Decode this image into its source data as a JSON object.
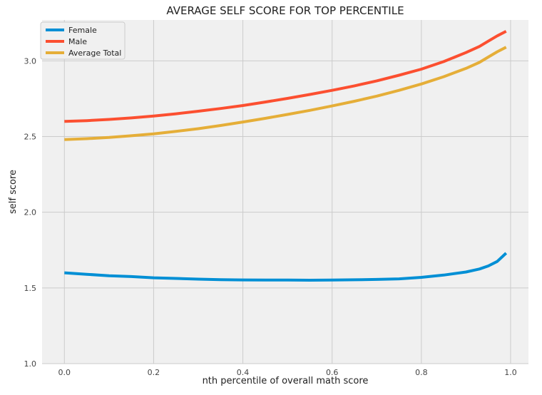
{
  "chart_data": {
    "type": "line",
    "title": "AVERAGE SELF SCORE FOR TOP PERCENTILE",
    "xlabel": "nth percentile of overall math score",
    "ylabel": "self score",
    "xlim": [
      -0.05,
      1.04
    ],
    "ylim": [
      1.0,
      3.27
    ],
    "xticks": [
      0.0,
      0.2,
      0.4,
      0.6,
      0.8,
      1.0
    ],
    "xtick_labels": [
      "0.0",
      "0.2",
      "0.4",
      "0.6",
      "0.8",
      "1.0"
    ],
    "yticks": [
      1.0,
      1.5,
      2.0,
      2.5,
      3.0
    ],
    "ytick_labels": [
      "1.0",
      "1.5",
      "2.0",
      "2.5",
      "3.0"
    ],
    "grid": true,
    "legend_position": "top-left",
    "background": "#f0f0f0",
    "x": [
      0.0,
      0.05,
      0.1,
      0.15,
      0.2,
      0.25,
      0.3,
      0.35,
      0.4,
      0.45,
      0.5,
      0.55,
      0.6,
      0.65,
      0.7,
      0.75,
      0.8,
      0.85,
      0.9,
      0.93,
      0.95,
      0.97,
      0.99
    ],
    "series": [
      {
        "name": "Female",
        "color": "#008fd5",
        "values": [
          1.6,
          1.59,
          1.58,
          1.575,
          1.567,
          1.563,
          1.558,
          1.555,
          1.553,
          1.552,
          1.552,
          1.551,
          1.552,
          1.554,
          1.556,
          1.56,
          1.57,
          1.585,
          1.605,
          1.625,
          1.645,
          1.675,
          1.73
        ]
      },
      {
        "name": "Male",
        "color": "#fc4f30",
        "values": [
          2.6,
          2.605,
          2.613,
          2.623,
          2.635,
          2.65,
          2.667,
          2.685,
          2.705,
          2.728,
          2.752,
          2.778,
          2.805,
          2.835,
          2.868,
          2.905,
          2.945,
          2.995,
          3.055,
          3.095,
          3.13,
          3.165,
          3.195
        ]
      },
      {
        "name": "Average Total",
        "color": "#e5ae38",
        "values": [
          2.48,
          2.486,
          2.494,
          2.505,
          2.518,
          2.534,
          2.552,
          2.573,
          2.596,
          2.62,
          2.646,
          2.673,
          2.702,
          2.733,
          2.767,
          2.805,
          2.847,
          2.895,
          2.95,
          2.99,
          3.025,
          3.06,
          3.09
        ]
      }
    ]
  }
}
